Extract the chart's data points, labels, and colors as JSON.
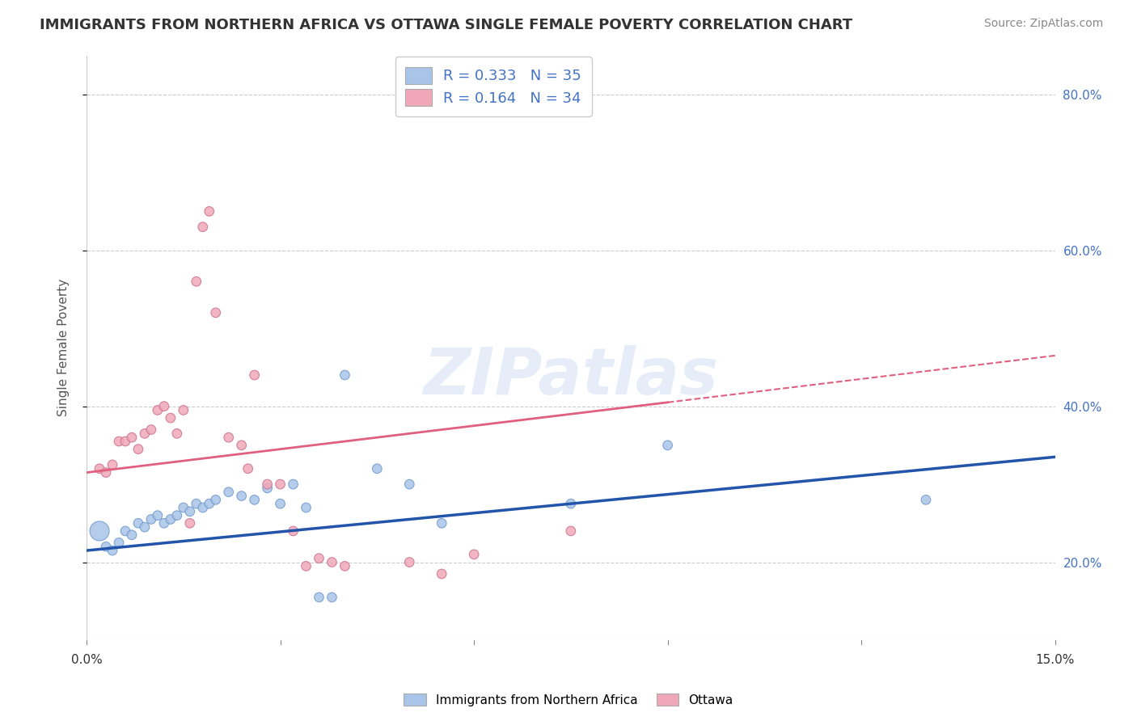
{
  "title": "IMMIGRANTS FROM NORTHERN AFRICA VS OTTAWA SINGLE FEMALE POVERTY CORRELATION CHART",
  "source": "Source: ZipAtlas.com",
  "ylabel": "Single Female Poverty",
  "legend_blue_r": "R = 0.333",
  "legend_blue_n": "N = 35",
  "legend_pink_r": "R = 0.164",
  "legend_pink_n": "N = 34",
  "blue_color": "#a8c4e8",
  "pink_color": "#f0a8b8",
  "blue_line_color": "#2255aa",
  "pink_line_color": "#e06080",
  "watermark": "ZIPatlas",
  "background_color": "#ffffff",
  "blue_scatter": [
    [
      0.002,
      0.24
    ],
    [
      0.003,
      0.22
    ],
    [
      0.004,
      0.215
    ],
    [
      0.005,
      0.225
    ],
    [
      0.006,
      0.24
    ],
    [
      0.007,
      0.235
    ],
    [
      0.008,
      0.25
    ],
    [
      0.009,
      0.245
    ],
    [
      0.01,
      0.255
    ],
    [
      0.011,
      0.26
    ],
    [
      0.012,
      0.25
    ],
    [
      0.013,
      0.255
    ],
    [
      0.014,
      0.26
    ],
    [
      0.015,
      0.27
    ],
    [
      0.016,
      0.265
    ],
    [
      0.017,
      0.275
    ],
    [
      0.018,
      0.27
    ],
    [
      0.019,
      0.275
    ],
    [
      0.02,
      0.28
    ],
    [
      0.022,
      0.29
    ],
    [
      0.024,
      0.285
    ],
    [
      0.026,
      0.28
    ],
    [
      0.028,
      0.295
    ],
    [
      0.03,
      0.275
    ],
    [
      0.032,
      0.3
    ],
    [
      0.034,
      0.27
    ],
    [
      0.036,
      0.155
    ],
    [
      0.038,
      0.155
    ],
    [
      0.04,
      0.44
    ],
    [
      0.045,
      0.32
    ],
    [
      0.05,
      0.3
    ],
    [
      0.055,
      0.25
    ],
    [
      0.075,
      0.275
    ],
    [
      0.09,
      0.35
    ],
    [
      0.13,
      0.28
    ]
  ],
  "pink_scatter": [
    [
      0.002,
      0.32
    ],
    [
      0.003,
      0.315
    ],
    [
      0.004,
      0.325
    ],
    [
      0.005,
      0.355
    ],
    [
      0.006,
      0.355
    ],
    [
      0.007,
      0.36
    ],
    [
      0.008,
      0.345
    ],
    [
      0.009,
      0.365
    ],
    [
      0.01,
      0.37
    ],
    [
      0.011,
      0.395
    ],
    [
      0.012,
      0.4
    ],
    [
      0.013,
      0.385
    ],
    [
      0.014,
      0.365
    ],
    [
      0.015,
      0.395
    ],
    [
      0.016,
      0.25
    ],
    [
      0.017,
      0.56
    ],
    [
      0.018,
      0.63
    ],
    [
      0.019,
      0.65
    ],
    [
      0.02,
      0.52
    ],
    [
      0.022,
      0.36
    ],
    [
      0.024,
      0.35
    ],
    [
      0.025,
      0.32
    ],
    [
      0.026,
      0.44
    ],
    [
      0.028,
      0.3
    ],
    [
      0.03,
      0.3
    ],
    [
      0.032,
      0.24
    ],
    [
      0.034,
      0.195
    ],
    [
      0.036,
      0.205
    ],
    [
      0.038,
      0.2
    ],
    [
      0.04,
      0.195
    ],
    [
      0.05,
      0.2
    ],
    [
      0.055,
      0.185
    ],
    [
      0.06,
      0.21
    ],
    [
      0.075,
      0.24
    ]
  ],
  "blue_line": [
    0.0,
    0.215,
    0.15,
    0.335
  ],
  "pink_line": [
    0.0,
    0.315,
    0.15,
    0.465
  ],
  "pink_line_dashed_start": 0.09,
  "xlim": [
    0.0,
    0.15
  ],
  "ylim": [
    0.1,
    0.85
  ],
  "y_ticks": [
    0.2,
    0.4,
    0.6,
    0.8
  ],
  "y_tick_labels": [
    "20.0%",
    "40.0%",
    "60.0%",
    "80.0%"
  ],
  "x_tick_labels": [
    "0.0%",
    "15.0%"
  ]
}
